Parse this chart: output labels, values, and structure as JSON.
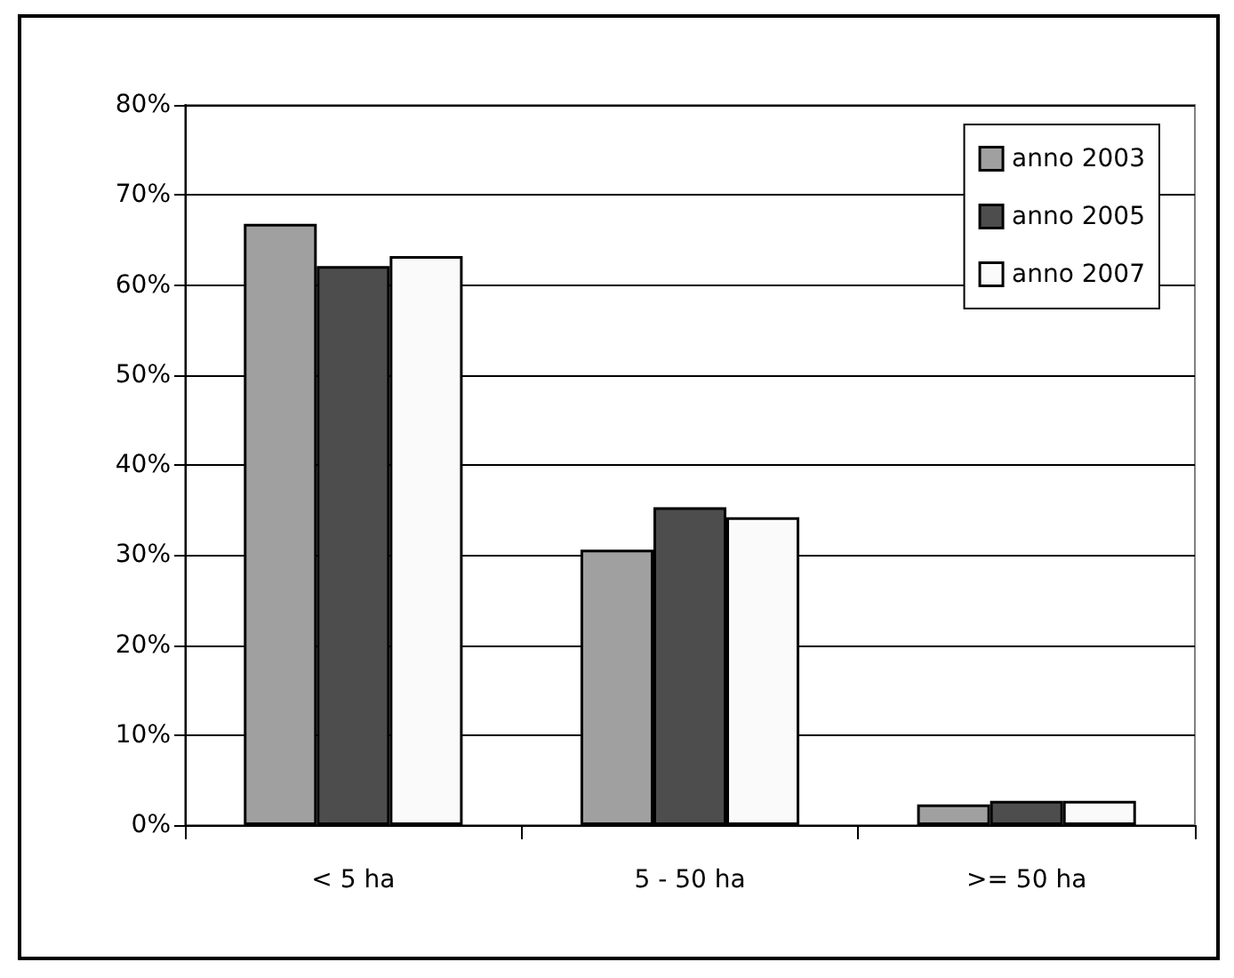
{
  "chart_data": {
    "type": "bar",
    "categories": [
      "< 5 ha",
      "5 - 50 ha",
      ">= 50 ha"
    ],
    "series": [
      {
        "name": "anno 2003",
        "color": "#a0a0a0",
        "values": [
          66.8,
          30.6,
          2.3
        ]
      },
      {
        "name": "anno 2005",
        "color": "#4d4d4d",
        "values": [
          62.1,
          35.3,
          2.7
        ]
      },
      {
        "name": "anno 2007",
        "color": "#fafafa",
        "values": [
          63.2,
          34.2,
          2.7
        ]
      }
    ],
    "ylim": [
      0,
      80
    ],
    "yticks": [
      {
        "value": 0,
        "label": "0%"
      },
      {
        "value": 10,
        "label": "10%"
      },
      {
        "value": 20,
        "label": "20%"
      },
      {
        "value": 30,
        "label": "30%"
      },
      {
        "value": 40,
        "label": "40%"
      },
      {
        "value": 50,
        "label": "50%"
      },
      {
        "value": 60,
        "label": "60%"
      },
      {
        "value": 70,
        "label": "70%"
      },
      {
        "value": 80,
        "label": "80%"
      }
    ],
    "grid": "y",
    "legend": "top right"
  }
}
